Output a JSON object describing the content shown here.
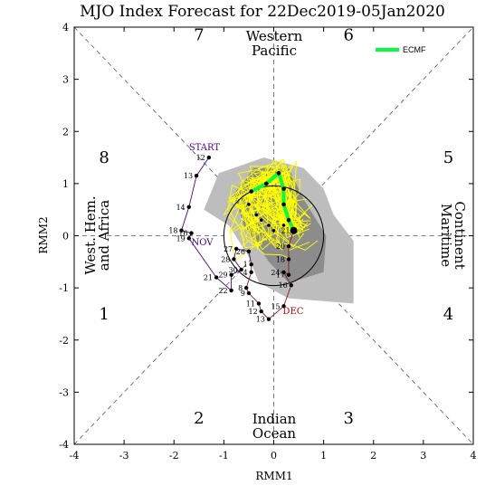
{
  "chart_data": {
    "type": "line",
    "title": "MJO Index Forecast for 22Dec2019-05Jan2020",
    "xlabel": "RMM1",
    "ylabel": "RMM2",
    "xlim": [
      -4,
      4
    ],
    "ylim": [
      -4,
      4
    ],
    "xticks": [
      "-4",
      "-3",
      "-2",
      "-1",
      "0",
      "1",
      "2",
      "3",
      "4"
    ],
    "yticks": [
      "-4",
      "-3",
      "-2",
      "-1",
      "0",
      "1",
      "2",
      "3",
      "4"
    ],
    "phases": [
      {
        "label": "1",
        "x": -3.4,
        "y": -1.5
      },
      {
        "label": "2",
        "x": -1.5,
        "y": -3.5
      },
      {
        "label": "3",
        "x": 1.5,
        "y": -3.5
      },
      {
        "label": "4",
        "x": 3.5,
        "y": -1.5
      },
      {
        "label": "5",
        "x": 3.5,
        "y": 1.5
      },
      {
        "label": "6",
        "x": 1.5,
        "y": 3.85
      },
      {
        "label": "7",
        "x": -1.5,
        "y": 3.85
      },
      {
        "label": "8",
        "x": -3.4,
        "y": 1.5
      }
    ],
    "regions": {
      "top": [
        "Western",
        "Pacific"
      ],
      "bottom": [
        "Indian",
        "Ocean"
      ],
      "left": [
        "West. Hem.",
        "and Africa"
      ],
      "right": [
        "Maritime",
        "Continent"
      ]
    },
    "legend": [
      {
        "name": "ECMF",
        "color": "#00ff40"
      }
    ],
    "legend_position": "top-right",
    "observed": {
      "color": "#4b0082",
      "start_label": "START",
      "month_labels": [
        {
          "label": "NOV",
          "x": -1.65,
          "y": -0.18,
          "color": "#4b0082"
        },
        {
          "label": "DEC",
          "x": 0.18,
          "y": -1.5,
          "color": "#c00000"
        }
      ],
      "points": [
        {
          "d": "12",
          "x": -1.3,
          "y": 1.5,
          "m": "nov"
        },
        {
          "d": "13",
          "x": -1.55,
          "y": 1.15,
          "m": "nov"
        },
        {
          "d": "14",
          "x": -1.7,
          "y": 0.55,
          "m": "nov"
        },
        {
          "d": "18",
          "x": -1.85,
          "y": 0.1,
          "m": "nov"
        },
        {
          "d": "16",
          "x": -1.65,
          "y": 0.05,
          "m": "nov"
        },
        {
          "d": "19",
          "x": -1.7,
          "y": -0.05,
          "m": "nov"
        },
        {
          "d": "21",
          "x": -1.15,
          "y": -0.8,
          "m": "nov"
        },
        {
          "d": "22",
          "x": -0.85,
          "y": -1.05,
          "m": "nov"
        },
        {
          "d": "29",
          "x": -0.85,
          "y": -0.75,
          "m": "nov"
        },
        {
          "d": "30",
          "x": -0.65,
          "y": -0.65,
          "m": "nov"
        },
        {
          "d": "28",
          "x": -0.8,
          "y": -0.45,
          "m": "nov"
        },
        {
          "d": "27",
          "x": -0.75,
          "y": -0.25,
          "m": "nov"
        },
        {
          "d": "26",
          "x": -0.5,
          "y": -0.3,
          "m": "nov"
        },
        {
          "d": "1",
          "x": -0.45,
          "y": -0.55,
          "m": "dec"
        },
        {
          "d": "4",
          "x": -0.45,
          "y": -0.7,
          "m": "dec"
        },
        {
          "d": "8",
          "x": -0.55,
          "y": -1.0,
          "m": "dec"
        },
        {
          "d": "9",
          "x": -0.5,
          "y": -1.1,
          "m": "dec"
        },
        {
          "d": "11",
          "x": -0.3,
          "y": -1.3,
          "m": "dec"
        },
        {
          "d": "12",
          "x": -0.25,
          "y": -1.45,
          "m": "dec"
        },
        {
          "d": "13",
          "x": -0.1,
          "y": -1.6,
          "m": "dec"
        },
        {
          "d": "15",
          "x": 0.2,
          "y": -1.35,
          "m": "dec"
        },
        {
          "d": "16",
          "x": 0.35,
          "y": -0.95,
          "m": "dec"
        },
        {
          "d": "24",
          "x": 0.2,
          "y": -0.7,
          "m": "dec"
        },
        {
          "d": "17",
          "x": 0.3,
          "y": -0.75,
          "m": "dec"
        },
        {
          "d": "18",
          "x": 0.3,
          "y": -0.45,
          "m": "dec"
        },
        {
          "d": "20",
          "x": 0.3,
          "y": -0.2,
          "m": "dec"
        },
        {
          "d": "21",
          "x": 0.4,
          "y": 0.1,
          "m": "dec"
        }
      ]
    },
    "ensemble_mean": [
      {
        "x": 0.4,
        "y": 0.1
      },
      {
        "x": 0.3,
        "y": 0.3
      },
      {
        "x": 0.2,
        "y": 0.6
      },
      {
        "x": 0.2,
        "y": 0.9
      },
      {
        "x": 0.1,
        "y": 1.2
      },
      {
        "x": -0.15,
        "y": 1.0
      },
      {
        "x": -0.45,
        "y": 0.85
      }
    ],
    "ensemble_extension": [
      {
        "x": -0.45,
        "y": 0.85
      },
      {
        "x": -0.5,
        "y": 0.6
      },
      {
        "x": -0.35,
        "y": 0.4
      },
      {
        "x": -0.25,
        "y": 0.3
      },
      {
        "x": -0.1,
        "y": 0.2
      },
      {
        "x": 0.0,
        "y": 0.1
      },
      {
        "x": 0.2,
        "y": 0.2
      }
    ],
    "spread_outer": [
      {
        "x": 1.6,
        "y": -1.3
      },
      {
        "x": 1.6,
        "y": -0.1
      },
      {
        "x": 1.2,
        "y": 0.4
      },
      {
        "x": 1.0,
        "y": 0.9
      },
      {
        "x": 0.6,
        "y": 1.3
      },
      {
        "x": -0.2,
        "y": 1.5
      },
      {
        "x": -1.1,
        "y": 1.2
      },
      {
        "x": -1.4,
        "y": 0.5
      },
      {
        "x": -0.9,
        "y": 0.2
      },
      {
        "x": -0.5,
        "y": -0.4
      },
      {
        "x": -0.3,
        "y": -0.9
      },
      {
        "x": 0.3,
        "y": -1.2
      }
    ],
    "spread_inner": [
      {
        "x": 1.0,
        "y": -0.7
      },
      {
        "x": 1.05,
        "y": 0.0
      },
      {
        "x": 0.6,
        "y": 0.7
      },
      {
        "x": 0.3,
        "y": 1.3
      },
      {
        "x": -0.4,
        "y": 1.3
      },
      {
        "x": -0.8,
        "y": 0.8
      },
      {
        "x": -0.6,
        "y": 0.2
      },
      {
        "x": -0.1,
        "y": -0.5
      },
      {
        "x": 0.3,
        "y": -0.9
      }
    ]
  }
}
